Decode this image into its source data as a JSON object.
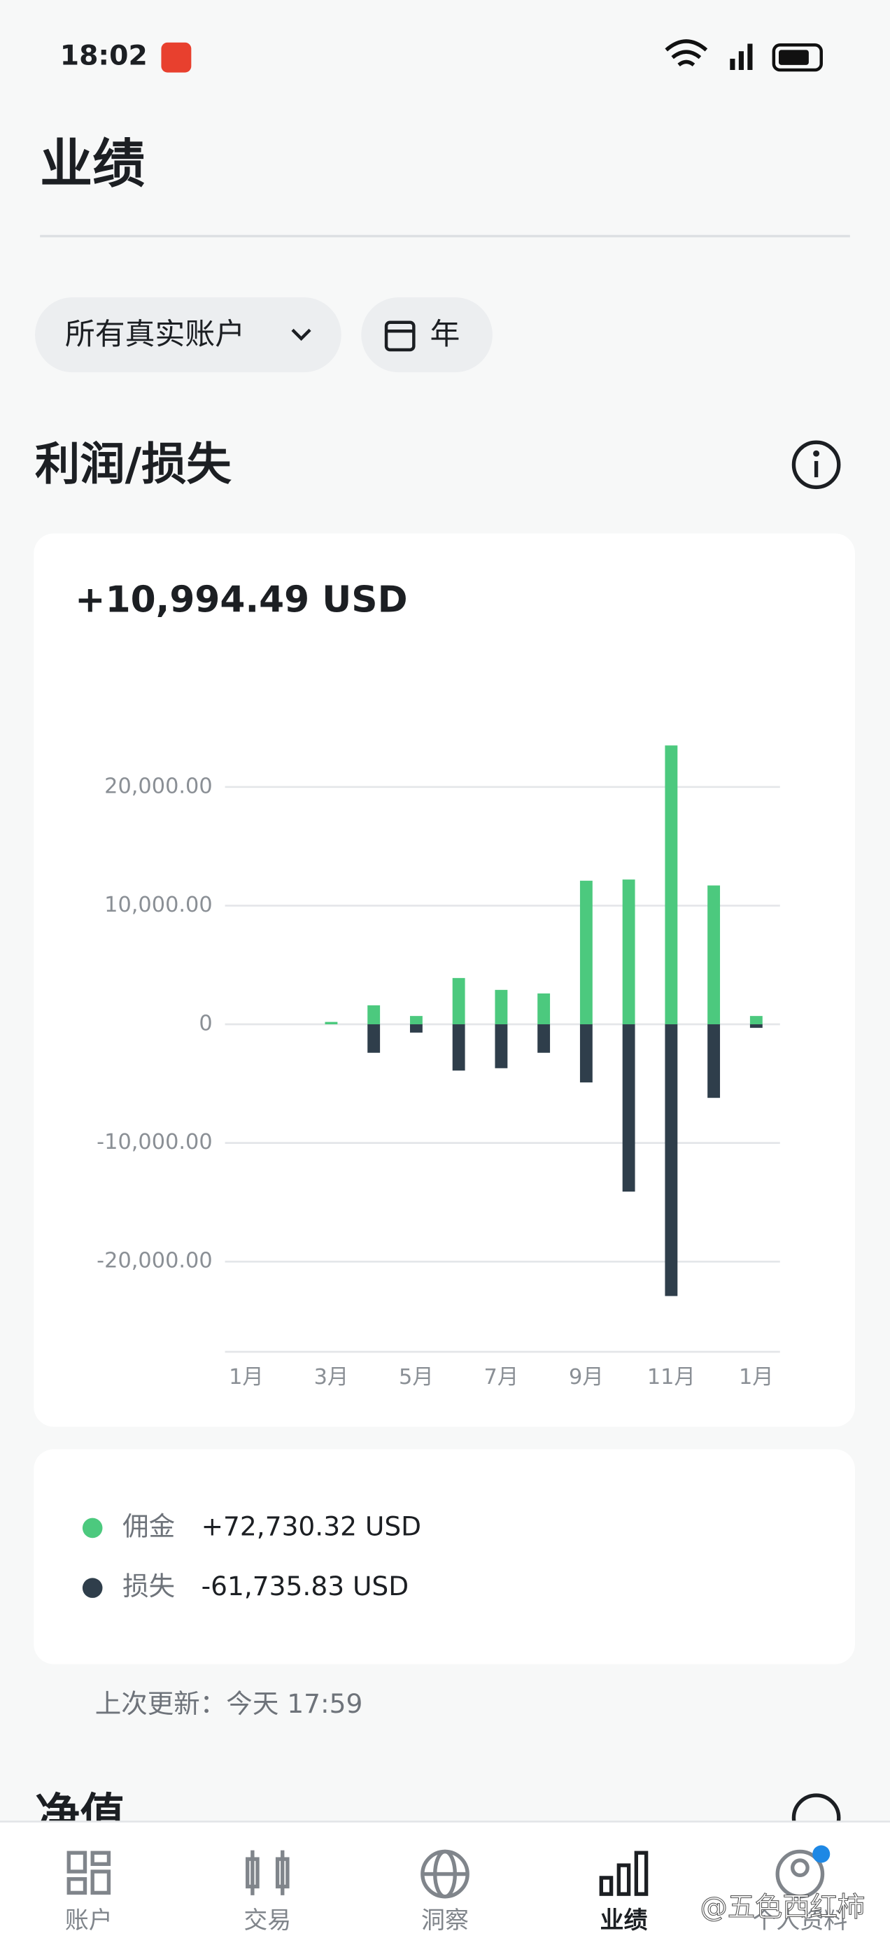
{
  "status_bar": {
    "time": "18:02"
  },
  "header": {
    "title": "业绩"
  },
  "filters": {
    "account": "所有真实账户",
    "period": "年"
  },
  "section": {
    "title": "利润/损失"
  },
  "chart_data": {
    "type": "bar",
    "total": "+10,994.49 USD",
    "categories": [
      "1月",
      null,
      "3月",
      null,
      "5月",
      null,
      "7月",
      null,
      "9月",
      null,
      "11月",
      null,
      "1月"
    ],
    "series": [
      {
        "name": "佣金",
        "color": "#4cc97e",
        "total": "+72,730.32 USD",
        "values": [
          0,
          0,
          200,
          1600,
          700,
          3900,
          2900,
          2600,
          12100,
          12200,
          23500,
          11700,
          700
        ]
      },
      {
        "name": "损失",
        "color": "#2f3e4b",
        "total": "-61,735.83 USD",
        "values": [
          0,
          0,
          0,
          -2400,
          -700,
          -3900,
          -3700,
          -2400,
          -4900,
          -14100,
          -22900,
          -6200,
          -300
        ]
      }
    ],
    "ylim": [
      -27600,
      24200
    ],
    "yticks": [
      {
        "value": -20000,
        "label": "-20,000.00"
      },
      {
        "value": -10000,
        "label": "-10,000.00"
      },
      0,
      {
        "value": 10000,
        "label": "10,000.00"
      },
      {
        "value": 20000,
        "label": "20,000.00"
      }
    ],
    "grid": true
  },
  "update": "上次更新：今天 17:59",
  "next_section": {
    "title": "净值"
  },
  "nav": [
    "账户",
    "交易",
    "洞察",
    "业绩",
    "个人资料"
  ],
  "watermark": "@五色西红柿"
}
